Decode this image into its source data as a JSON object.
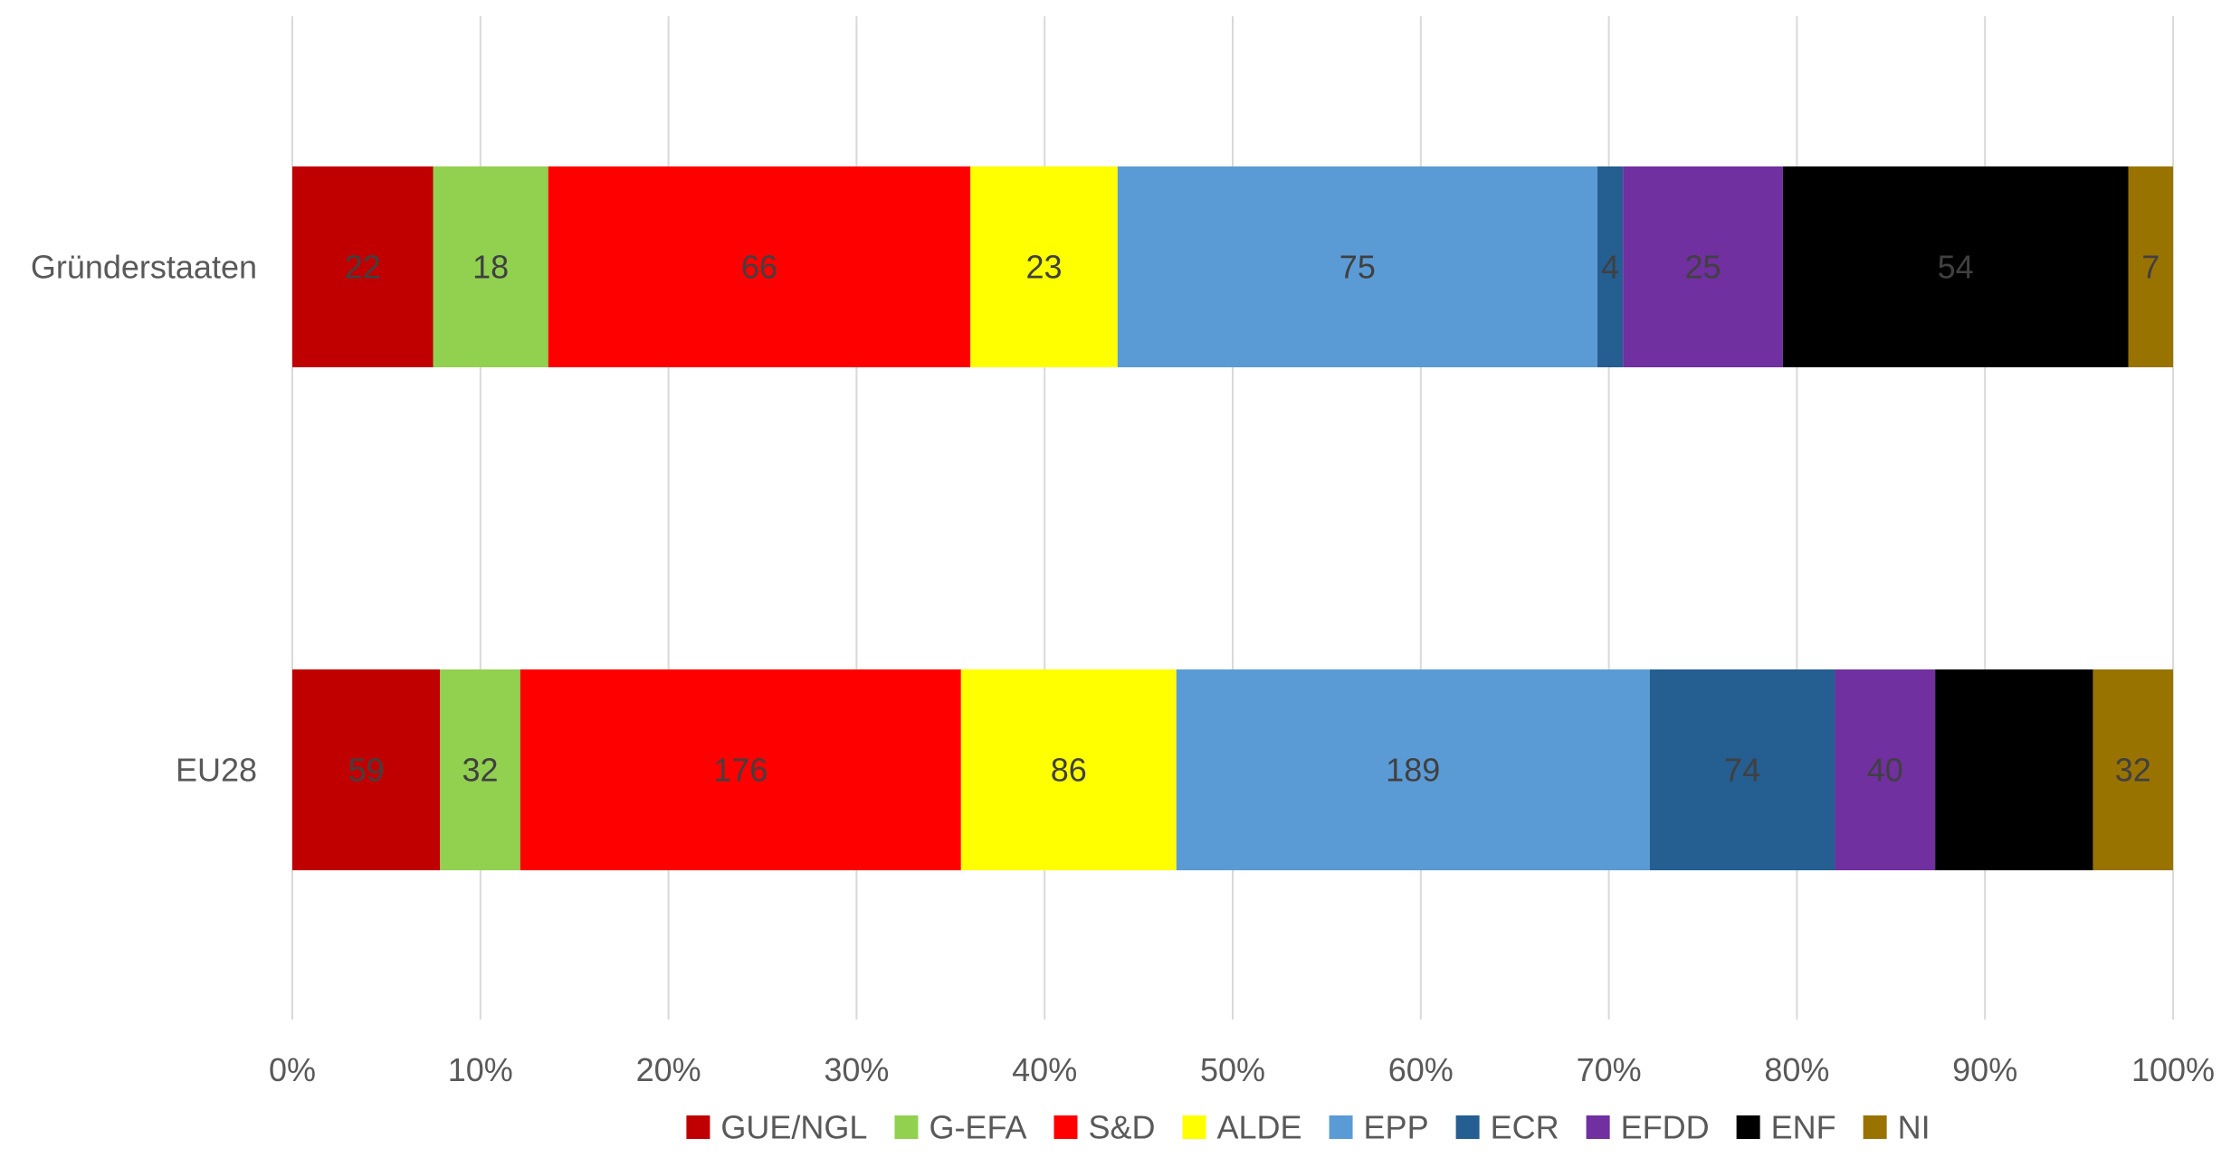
{
  "chart_data": {
    "type": "bar",
    "orientation": "horizontal",
    "stacked": "percent",
    "categories": [
      "Gründerstaaten",
      "EU28"
    ],
    "series": [
      {
        "name": "GUE/NGL",
        "color": "#C00000",
        "values": [
          22,
          59
        ],
        "labels": [
          "22",
          "59"
        ]
      },
      {
        "name": "G-EFA",
        "color": "#92D050",
        "values": [
          18,
          32
        ],
        "labels": [
          "18",
          "32"
        ]
      },
      {
        "name": "S&D",
        "color": "#FF0000",
        "values": [
          66,
          176
        ],
        "labels": [
          "66",
          "176"
        ]
      },
      {
        "name": "ALDE",
        "color": "#FFFF00",
        "values": [
          23,
          86
        ],
        "labels": [
          "23",
          "86"
        ]
      },
      {
        "name": "EPP",
        "color": "#5B9BD5",
        "values": [
          75,
          189
        ],
        "labels": [
          "75",
          "189"
        ]
      },
      {
        "name": "ECR",
        "color": "#255E91",
        "values": [
          4,
          74
        ],
        "labels": [
          "4",
          "74"
        ]
      },
      {
        "name": "EFDD",
        "color": "#7030A0",
        "values": [
          25,
          40
        ],
        "labels": [
          "25",
          "40"
        ]
      },
      {
        "name": "ENF",
        "color": "#000000",
        "values": [
          54,
          63
        ],
        "labels": [
          "54",
          ""
        ]
      },
      {
        "name": "NI",
        "color": "#997300",
        "values": [
          7,
          32
        ],
        "labels": [
          "7",
          "32"
        ]
      }
    ],
    "x_ticks": [
      "0%",
      "10%",
      "20%",
      "30%",
      "40%",
      "50%",
      "60%",
      "70%",
      "80%",
      "90%",
      "100%"
    ],
    "xlim": [
      0,
      100
    ],
    "grid": "vertical",
    "legend": "bottom"
  }
}
